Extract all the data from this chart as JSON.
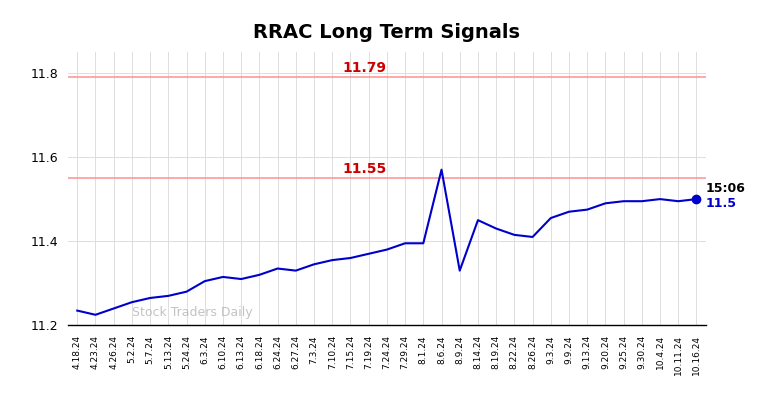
{
  "title": "RRAC Long Term Signals",
  "watermark": "Stock Traders Daily",
  "hline1_value": 11.79,
  "hline2_value": 11.55,
  "hline1_label": "11.79",
  "hline2_label": "11.55",
  "last_time": "15:06",
  "last_price": 11.5,
  "last_price_label": "11.5",
  "line_color": "#0000cc",
  "hline_color": "#ff9999",
  "hline_label_color": "#cc0000",
  "ylim": [
    11.2,
    11.85
  ],
  "yticks": [
    11.2,
    11.4,
    11.6,
    11.8
  ],
  "x_labels": [
    "4.18.24",
    "4.23.24",
    "4.26.24",
    "5.2.24",
    "5.7.24",
    "5.13.24",
    "5.24.24",
    "6.3.24",
    "6.10.24",
    "6.13.24",
    "6.18.24",
    "6.24.24",
    "6.27.24",
    "7.3.24",
    "7.10.24",
    "7.15.24",
    "7.19.24",
    "7.24.24",
    "7.29.24",
    "8.1.24",
    "8.6.24",
    "8.9.24",
    "8.14.24",
    "8.19.24",
    "8.22.24",
    "8.26.24",
    "9.3.24",
    "9.9.24",
    "9.13.24",
    "9.20.24",
    "9.25.24",
    "9.30.24",
    "10.4.24",
    "10.11.24",
    "10.16.24"
  ],
  "y_values": [
    11.235,
    11.225,
    11.24,
    11.255,
    11.265,
    11.27,
    11.28,
    11.305,
    11.315,
    11.31,
    11.32,
    11.335,
    11.33,
    11.345,
    11.355,
    11.36,
    11.37,
    11.38,
    11.395,
    11.395,
    11.57,
    11.33,
    11.45,
    11.43,
    11.415,
    11.41,
    11.455,
    11.47,
    11.475,
    11.49,
    11.495,
    11.495,
    11.5,
    11.495,
    11.5
  ],
  "spike_index": 20,
  "spike_value": 11.57,
  "dip_index": 21,
  "dip_value": 11.33,
  "background_color": "#ffffff",
  "grid_color": "#dddddd"
}
